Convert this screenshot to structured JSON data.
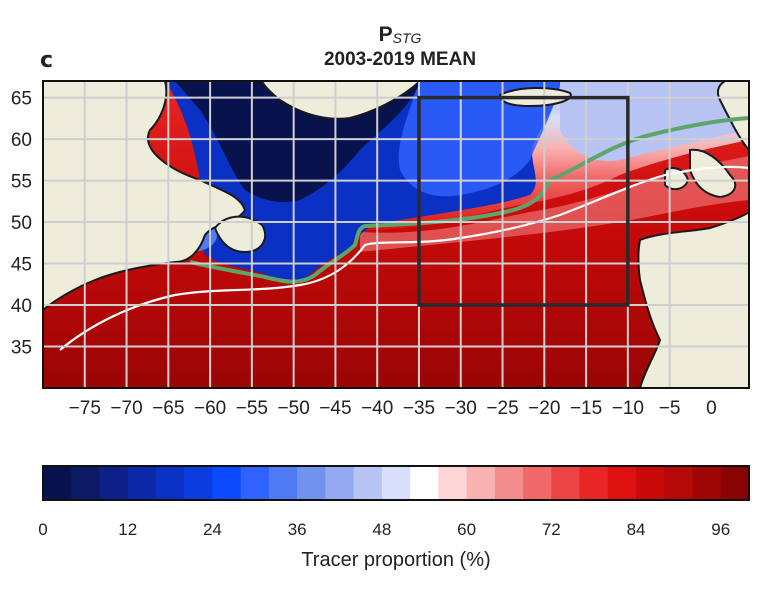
{
  "panel_label": "c",
  "title": {
    "main": "P",
    "subscript": "STG",
    "subtitle": "2003-2019 MEAN"
  },
  "map": {
    "lon_range": [
      -80,
      4.5
    ],
    "lat_range": [
      30,
      67
    ],
    "lat_ticks": [
      35,
      40,
      45,
      50,
      55,
      60,
      65
    ],
    "lon_ticks": [
      -75,
      -70,
      -65,
      -60,
      -55,
      -50,
      -45,
      -40,
      -35,
      -30,
      -25,
      -20,
      -15,
      -10,
      -5,
      0
    ],
    "grid_lons": [
      -75,
      -70,
      -65,
      -60,
      -55,
      -50,
      -45,
      -40,
      -35,
      -30,
      -25,
      -20,
      -15,
      -10,
      -5
    ],
    "grid_lats": [
      35,
      40,
      45,
      50,
      55,
      60,
      65
    ],
    "box": {
      "lon": [
        -35,
        -10
      ],
      "lat": [
        40,
        65
      ]
    },
    "land_color": "#eeeddc",
    "grid_color": "#cfcfcf",
    "contour_green": "#5da56a",
    "contour_white": "#ffffff"
  },
  "colorbar": {
    "min": 0,
    "max": 100,
    "step": 4,
    "ticks": [
      0,
      12,
      24,
      36,
      48,
      60,
      72,
      84,
      96
    ],
    "label": "Tracer proportion (%)",
    "colors": [
      "#08124d",
      "#0c1a66",
      "#0d208a",
      "#0c27a8",
      "#0b30c4",
      "#0a3ce0",
      "#0b4aff",
      "#2f62ff",
      "#4f7bf5",
      "#7292f0",
      "#95aaf0",
      "#b8c4f3",
      "#d9defa",
      "#ffffff",
      "#fcd6d6",
      "#f9b2b2",
      "#f48d8d",
      "#f06868",
      "#ec4444",
      "#e92626",
      "#df1010",
      "#c90a0a",
      "#b50808",
      "#9f0606",
      "#880303"
    ]
  }
}
